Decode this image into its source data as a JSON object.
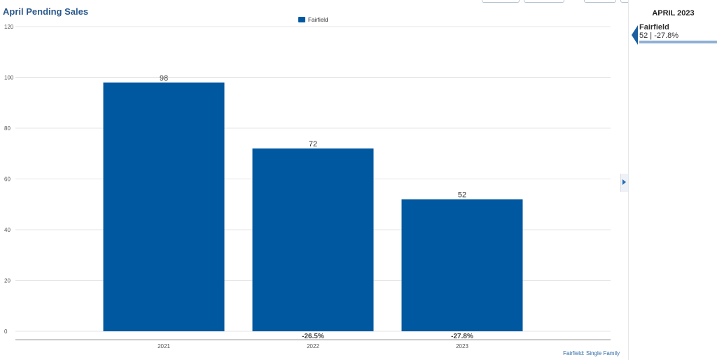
{
  "header": {
    "title": "April Pending Sales"
  },
  "sidebar": {
    "date": "APRIL 2023",
    "name": "Fairfield",
    "value": "52 | -27.8%"
  },
  "footnote": "Fairfield: Single Family",
  "colors": {
    "bar": "#0058a0",
    "title": "#2c5a8c",
    "grid": "#e6e6e6",
    "axis": "#999999"
  },
  "chart_data": {
    "type": "bar",
    "categories": [
      "2021",
      "2022",
      "2023"
    ],
    "series": [
      {
        "name": "Fairfield",
        "values": [
          98,
          72,
          52
        ]
      }
    ],
    "change_labels": [
      "",
      "-26.5%",
      "-27.8%"
    ],
    "ylim": [
      0,
      120
    ],
    "yticks": [
      0,
      20,
      40,
      60,
      80,
      100,
      120
    ],
    "grid": true,
    "legend": "top-center",
    "title": "April Pending Sales",
    "xlabel": "",
    "ylabel": ""
  }
}
